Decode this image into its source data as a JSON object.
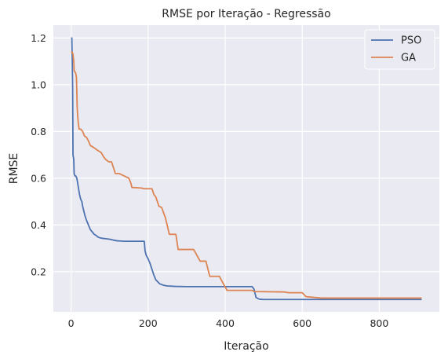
{
  "chart_data": {
    "type": "line",
    "title": "RMSE por Iteração - Regressão",
    "xlabel": "Iteração",
    "ylabel": "RMSE",
    "xlim": [
      -46,
      956
    ],
    "ylim": [
      0.028,
      1.255
    ],
    "xticks": [
      0,
      200,
      400,
      600,
      800
    ],
    "yticks": [
      0.2,
      0.4,
      0.6,
      0.8,
      1.0,
      1.2
    ],
    "xtick_labels": [
      "0",
      "200",
      "400",
      "600",
      "800"
    ],
    "ytick_labels": [
      "0.2",
      "0.4",
      "0.6",
      "0.8",
      "1.0",
      "1.2"
    ],
    "grid": true,
    "legend_position": "top-right",
    "series": [
      {
        "name": "PSO",
        "color": "#4C72B0",
        "x": [
          0,
          2,
          4,
          5,
          7,
          8,
          10,
          12,
          15,
          18,
          20,
          22,
          25,
          28,
          30,
          33,
          36,
          40,
          45,
          50,
          55,
          60,
          65,
          70,
          75,
          80,
          90,
          100,
          110,
          120,
          130,
          140,
          150,
          160,
          170,
          180,
          190,
          192,
          195,
          200,
          205,
          210,
          215,
          220,
          230,
          240,
          250,
          270,
          300,
          350,
          400,
          450,
          470,
          475,
          480,
          485,
          490,
          500,
          550,
          600,
          700,
          800,
          910
        ],
        "y": [
          1.2,
          1.2,
          1.0,
          0.7,
          0.68,
          0.62,
          0.61,
          0.61,
          0.6,
          0.57,
          0.55,
          0.53,
          0.51,
          0.5,
          0.48,
          0.46,
          0.44,
          0.42,
          0.4,
          0.38,
          0.37,
          0.36,
          0.355,
          0.348,
          0.345,
          0.343,
          0.341,
          0.339,
          0.335,
          0.332,
          0.331,
          0.33,
          0.33,
          0.33,
          0.33,
          0.33,
          0.33,
          0.29,
          0.27,
          0.255,
          0.235,
          0.21,
          0.185,
          0.165,
          0.148,
          0.142,
          0.139,
          0.137,
          0.136,
          0.136,
          0.136,
          0.136,
          0.136,
          0.125,
          0.09,
          0.085,
          0.082,
          0.081,
          0.081,
          0.081,
          0.081,
          0.081,
          0.081
        ]
      },
      {
        "name": "GA",
        "color": "#DD8452",
        "x": [
          0,
          3,
          5,
          7,
          8,
          12,
          14,
          16,
          17,
          19,
          21,
          25,
          30,
          35,
          40,
          45,
          50,
          55,
          60,
          68,
          78,
          85,
          90,
          98,
          105,
          115,
          125,
          150,
          155,
          158,
          163,
          183,
          190,
          210,
          215,
          220,
          228,
          235,
          245,
          255,
          262,
          272,
          278,
          285,
          318,
          325,
          335,
          350,
          360,
          365,
          385,
          398,
          405,
          415,
          470,
          475,
          555,
          565,
          600,
          610,
          630,
          650,
          700,
          800,
          910
        ],
        "y": [
          1.14,
          1.14,
          1.13,
          1.1,
          1.06,
          1.05,
          1.03,
          0.9,
          0.87,
          0.83,
          0.81,
          0.81,
          0.8,
          0.78,
          0.775,
          0.76,
          0.74,
          0.735,
          0.73,
          0.72,
          0.71,
          0.69,
          0.68,
          0.67,
          0.67,
          0.62,
          0.62,
          0.6,
          0.58,
          0.56,
          0.56,
          0.558,
          0.555,
          0.555,
          0.53,
          0.52,
          0.48,
          0.475,
          0.43,
          0.36,
          0.36,
          0.36,
          0.295,
          0.295,
          0.295,
          0.275,
          0.245,
          0.245,
          0.18,
          0.18,
          0.18,
          0.14,
          0.12,
          0.12,
          0.12,
          0.115,
          0.113,
          0.11,
          0.11,
          0.093,
          0.09,
          0.087,
          0.087,
          0.087,
          0.087
        ]
      }
    ]
  }
}
